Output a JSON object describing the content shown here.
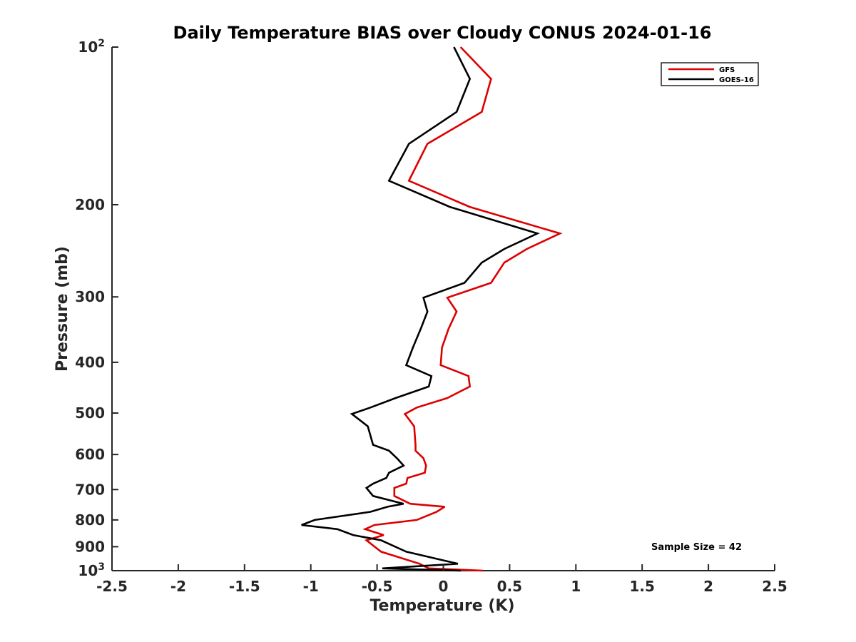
{
  "chart_data": {
    "type": "line",
    "title": "Daily Temperature BIAS over Cloudy CONUS 2024-01-16",
    "xlabel": "Temperature (K)",
    "ylabel": "Pressure (mb)",
    "xlim": [
      -2.5,
      2.5
    ],
    "ylim": [
      1000,
      100
    ],
    "yscale": "log",
    "ydirection": "reverse",
    "grid": false,
    "legend_position": "top-right",
    "x_ticks": [
      "-2.5",
      "-2",
      "-1.5",
      "-1",
      "-0.5",
      "0",
      "0.5",
      "1",
      "1.5",
      "2",
      "2.5"
    ],
    "x_tick_values": [
      -2.5,
      -2,
      -1.5,
      -1,
      -0.5,
      0,
      0.5,
      1,
      1.5,
      2,
      2.5
    ],
    "y_ticks": [
      {
        "value": 100,
        "base": "10",
        "exp": "2"
      },
      {
        "value": 200,
        "label": "200"
      },
      {
        "value": 300,
        "label": "300"
      },
      {
        "value": 400,
        "label": "400"
      },
      {
        "value": 500,
        "label": "500"
      },
      {
        "value": 600,
        "label": "600"
      },
      {
        "value": 700,
        "label": "700"
      },
      {
        "value": 800,
        "label": "800"
      },
      {
        "value": 900,
        "label": "900"
      },
      {
        "value": 1000,
        "base": "10",
        "exp": "3"
      }
    ],
    "annotation": "Sample Size = 42",
    "series": [
      {
        "name": "GFS",
        "color": "#dd0000",
        "points": [
          [
            0.13,
            100
          ],
          [
            0.36,
            115
          ],
          [
            0.29,
            133
          ],
          [
            -0.12,
            153
          ],
          [
            -0.26,
            180
          ],
          [
            0.2,
            202
          ],
          [
            0.88,
            227
          ],
          [
            0.63,
            243
          ],
          [
            0.46,
            258
          ],
          [
            0.36,
            282
          ],
          [
            0.03,
            301
          ],
          [
            0.1,
            320
          ],
          [
            0.04,
            345
          ],
          [
            -0.01,
            375
          ],
          [
            -0.02,
            405
          ],
          [
            0.19,
            425
          ],
          [
            0.2,
            445
          ],
          [
            0.03,
            468
          ],
          [
            -0.2,
            488
          ],
          [
            -0.29,
            502
          ],
          [
            -0.22,
            530
          ],
          [
            -0.21,
            575
          ],
          [
            -0.21,
            590
          ],
          [
            -0.15,
            610
          ],
          [
            -0.13,
            630
          ],
          [
            -0.14,
            650
          ],
          [
            -0.27,
            665
          ],
          [
            -0.28,
            682
          ],
          [
            -0.37,
            695
          ],
          [
            -0.37,
            720
          ],
          [
            -0.25,
            745
          ],
          [
            0.01,
            755
          ],
          [
            -0.05,
            772
          ],
          [
            -0.2,
            800
          ],
          [
            -0.52,
            818
          ],
          [
            -0.59,
            833
          ],
          [
            -0.45,
            855
          ],
          [
            -0.58,
            875
          ],
          [
            -0.47,
            920
          ],
          [
            -0.18,
            970
          ],
          [
            -0.11,
            990
          ],
          [
            0.3,
            1000
          ]
        ]
      },
      {
        "name": "GOES-16",
        "color": "#000000",
        "points": [
          [
            0.08,
            100
          ],
          [
            0.2,
            115
          ],
          [
            0.1,
            133
          ],
          [
            -0.26,
            153
          ],
          [
            -0.41,
            180
          ],
          [
            0.05,
            202
          ],
          [
            0.71,
            227
          ],
          [
            0.46,
            243
          ],
          [
            0.29,
            258
          ],
          [
            0.16,
            282
          ],
          [
            -0.15,
            301
          ],
          [
            -0.12,
            320
          ],
          [
            -0.17,
            345
          ],
          [
            -0.23,
            375
          ],
          [
            -0.28,
            405
          ],
          [
            -0.09,
            425
          ],
          [
            -0.11,
            445
          ],
          [
            -0.36,
            468
          ],
          [
            -0.55,
            488
          ],
          [
            -0.69,
            502
          ],
          [
            -0.57,
            530
          ],
          [
            -0.53,
            575
          ],
          [
            -0.41,
            590
          ],
          [
            -0.35,
            610
          ],
          [
            -0.3,
            630
          ],
          [
            -0.41,
            650
          ],
          [
            -0.43,
            665
          ],
          [
            -0.53,
            682
          ],
          [
            -0.58,
            695
          ],
          [
            -0.53,
            720
          ],
          [
            -0.3,
            745
          ],
          [
            -0.42,
            755
          ],
          [
            -0.55,
            772
          ],
          [
            -0.97,
            800
          ],
          [
            -1.07,
            818
          ],
          [
            -0.8,
            833
          ],
          [
            -0.68,
            855
          ],
          [
            -0.47,
            875
          ],
          [
            -0.28,
            920
          ],
          [
            0.11,
            970
          ],
          [
            -0.46,
            990
          ],
          [
            0.13,
            1000
          ]
        ]
      }
    ]
  }
}
